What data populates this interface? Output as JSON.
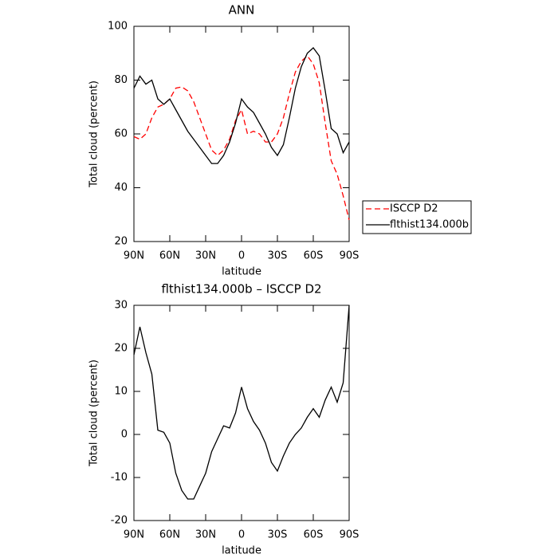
{
  "chart_data": [
    {
      "type": "line",
      "title": "ANN",
      "xlabel": "latitude",
      "ylabel": "Total cloud (percent)",
      "x": [
        90,
        85,
        80,
        75,
        70,
        65,
        60,
        55,
        50,
        45,
        40,
        35,
        30,
        25,
        20,
        15,
        10,
        5,
        0,
        -5,
        -10,
        -15,
        -20,
        -25,
        -30,
        -35,
        -40,
        -45,
        -50,
        -55,
        -60,
        -65,
        -70,
        -75,
        -80,
        -85,
        -90
      ],
      "xlim": [
        90,
        -90
      ],
      "xticks": [
        {
          "value": 90,
          "label": "90N"
        },
        {
          "value": 60,
          "label": "60N"
        },
        {
          "value": 30,
          "label": "30N"
        },
        0,
        {
          "value": -30,
          "label": "30S"
        },
        {
          "value": -60,
          "label": "60S"
        },
        {
          "value": -90,
          "label": "90S"
        }
      ],
      "ylim": [
        20,
        100
      ],
      "yticks": [
        20,
        40,
        60,
        80,
        100
      ],
      "legend": "outside-right",
      "series": [
        {
          "name": "ISCCP D2",
          "color": "#ff0000",
          "linestyle": "dashed",
          "values": [
            59,
            58,
            60,
            66,
            70,
            71,
            73,
            77,
            77.5,
            76,
            72,
            66,
            60,
            54,
            52,
            54,
            58,
            65,
            69,
            60,
            61,
            60,
            57,
            57,
            60,
            66,
            75,
            83,
            87,
            89,
            86,
            79,
            64,
            50,
            45,
            37,
            28
          ]
        },
        {
          "name": "flthist134.000b",
          "color": "#000000",
          "linestyle": "solid",
          "values": [
            77,
            81.5,
            78.5,
            80,
            73,
            71,
            73,
            69,
            65,
            61,
            58,
            55,
            52,
            49,
            49,
            52,
            57,
            64,
            73,
            70,
            68,
            64,
            60,
            55,
            52,
            56,
            66,
            77,
            85,
            90,
            92,
            89,
            76,
            62,
            60,
            53,
            57
          ]
        }
      ]
    },
    {
      "type": "line",
      "title": "flthist134.000b – ISCCP D2",
      "xlabel": "latitude",
      "ylabel": "Total cloud (percent)",
      "x": [
        90,
        85,
        80,
        75,
        70,
        65,
        60,
        55,
        50,
        45,
        40,
        35,
        30,
        25,
        20,
        15,
        10,
        5,
        0,
        -5,
        -10,
        -15,
        -20,
        -25,
        -30,
        -35,
        -40,
        -45,
        -50,
        -55,
        -60,
        -65,
        -70,
        -75,
        -80,
        -85,
        -90
      ],
      "xlim": [
        90,
        -90
      ],
      "xticks": [
        {
          "value": 90,
          "label": "90N"
        },
        {
          "value": 60,
          "label": "60N"
        },
        {
          "value": 30,
          "label": "30N"
        },
        0,
        {
          "value": -30,
          "label": "30S"
        },
        {
          "value": -60,
          "label": "60S"
        },
        {
          "value": -90,
          "label": "90S"
        }
      ],
      "ylim": [
        -20,
        30
      ],
      "yticks": [
        -20,
        -10,
        0,
        10,
        20,
        30
      ],
      "series": [
        {
          "color": "#000000",
          "linestyle": "solid",
          "values": [
            18.5,
            25,
            19,
            14,
            1,
            0.5,
            -2,
            -9,
            -13,
            -15,
            -15,
            -12,
            -9,
            -4,
            -1,
            2,
            1.5,
            5,
            11,
            6,
            3,
            1,
            -2,
            -6.5,
            -8.5,
            -5,
            -2,
            0,
            1.5,
            4,
            6,
            4,
            8,
            11,
            7.5,
            12,
            30
          ]
        }
      ]
    }
  ]
}
